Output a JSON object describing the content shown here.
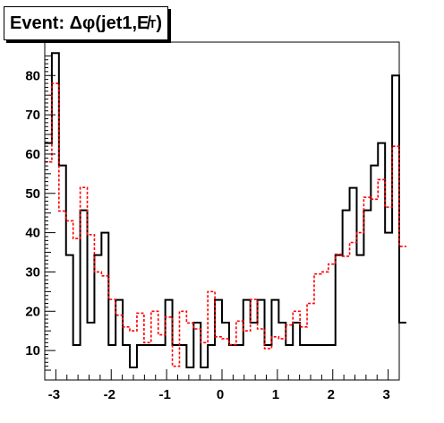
{
  "title": "Event: Δφ(jet1,E̸T)",
  "title_parts": {
    "main": "Event: Δφ(jet1,",
    "sym": "E̸",
    "sub": "T",
    "close": ")"
  },
  "colors": {
    "solid": "#000000",
    "dashed": "#ff0000",
    "axis": "#000000",
    "background": "#ffffff"
  },
  "chart_data": {
    "type": "histogram",
    "title": "Event: Δφ(jet1,E̸T)",
    "xlabel": "",
    "ylabel": "",
    "xlim": [
      -3.2,
      3.2
    ],
    "ylim": [
      2.5,
      88.5
    ],
    "grid": false,
    "legend": "none",
    "x_ticks": [
      -3,
      -2,
      -1,
      0,
      1,
      2,
      3
    ],
    "y_ticks": [
      10,
      20,
      30,
      40,
      50,
      60,
      70,
      80
    ],
    "bin_width": 0.128,
    "series": [
      {
        "style": "solid",
        "color": "#000000",
        "values": [
          62.8,
          85.7,
          57.1,
          34.3,
          11.4,
          45.7,
          17.1,
          34.3,
          40.0,
          11.4,
          22.9,
          11.4,
          5.7,
          11.4,
          11.4,
          11.4,
          11.4,
          22.9,
          11.4,
          11.4,
          5.7,
          17.1,
          5.7,
          11.4,
          22.9,
          17.1,
          11.4,
          11.4,
          22.9,
          17.1,
          22.9,
          11.4,
          22.9,
          17.1,
          11.4,
          17.1,
          11.4,
          11.4,
          11.4,
          11.4,
          11.4,
          34.3,
          45.7,
          51.4,
          34.3,
          45.7,
          57.1,
          62.8,
          40.0,
          80.0,
          17.1
        ]
      },
      {
        "style": "dashed",
        "color": "#ff0000",
        "values": [
          58.0,
          78.0,
          45.5,
          43.0,
          38.5,
          51.5,
          39.5,
          30.0,
          29.0,
          23.0,
          19.0,
          16.0,
          15.0,
          19.5,
          12.0,
          20.0,
          14.0,
          18.5,
          6.0,
          20.0,
          17.0,
          15.5,
          12.0,
          25.0,
          13.5,
          13.0,
          11.5,
          17.5,
          15.0,
          23.0,
          15.5,
          10.5,
          13.5,
          13.0,
          16.5,
          20.0,
          16.0,
          22.0,
          29.5,
          30.0,
          32.0,
          34.5,
          34.0,
          37.5,
          40.0,
          49.0,
          48.5,
          53.5,
          46.5,
          62.0,
          36.5
        ]
      }
    ]
  }
}
